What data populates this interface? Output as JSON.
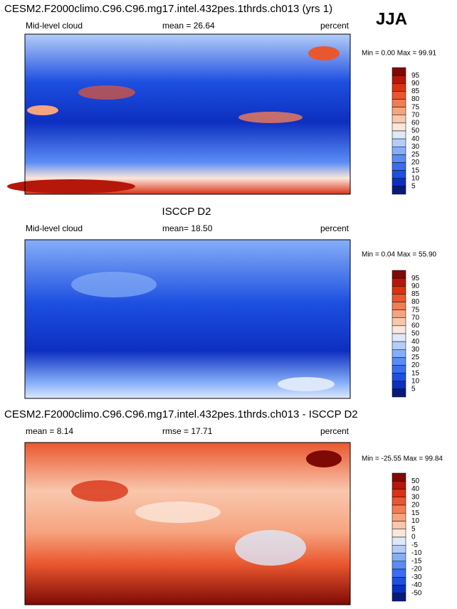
{
  "season": "JJA",
  "colorbar_colors": [
    "#0a1a7a",
    "#0d2fc0",
    "#1d4fe0",
    "#3a6ef0",
    "#5a8cf5",
    "#86aef7",
    "#b4cdf8",
    "#dde8fb",
    "#fbe6da",
    "#f9c7ad",
    "#f6a47f",
    "#f27d55",
    "#e9572f",
    "#d93215",
    "#b5170a",
    "#7f0a05"
  ],
  "panels": [
    {
      "title": "CESM2.F2000climo.C96.C96.mg17.intel.432pes.1thrds.ch013 (yrs 1)",
      "left": "Mid-level cloud",
      "middle": "mean =  26.64",
      "right": "percent",
      "minmax": "Min =  0.00 Max = 99.91",
      "levels": [
        95,
        90,
        85,
        80,
        75,
        70,
        60,
        50,
        40,
        30,
        25,
        20,
        15,
        10,
        5
      ]
    },
    {
      "title": "ISCCP D2",
      "left": "Mid-level cloud",
      "middle": "mean=  18.50",
      "right": "percent",
      "minmax": "Min =  0.04 Max = 55.90",
      "levels": [
        95,
        90,
        85,
        80,
        75,
        70,
        60,
        50,
        40,
        30,
        25,
        20,
        15,
        10,
        5
      ]
    },
    {
      "title": "CESM2.F2000climo.C96.C96.mg17.intel.432pes.1thrds.ch013 - ISCCP D2",
      "left": "mean =  8.14",
      "middle": "rmse =  17.71",
      "right": "percent",
      "minmax": "Min = -25.55 Max = 99.84",
      "levels": [
        50,
        40,
        30,
        20,
        15,
        10,
        5,
        0,
        -5,
        -10,
        -15,
        -20,
        -30,
        -40,
        -50
      ]
    }
  ]
}
